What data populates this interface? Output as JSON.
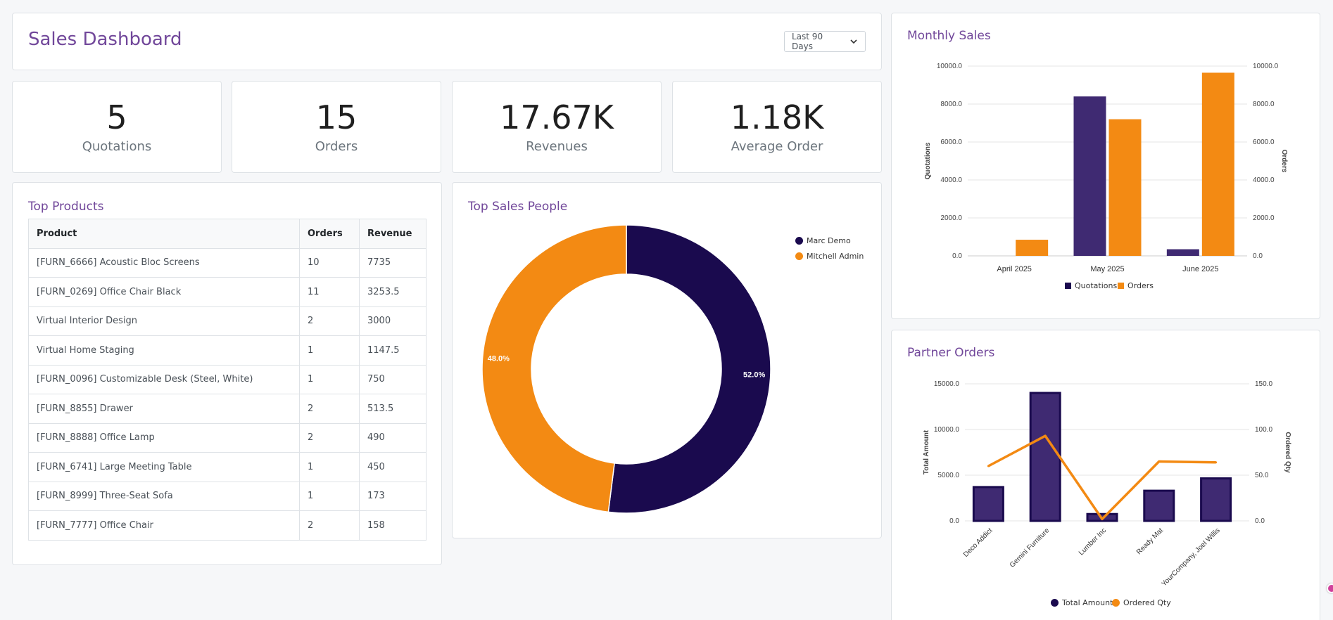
{
  "header": {
    "title": "Sales Dashboard",
    "period": "Last 90 Days"
  },
  "kpis": [
    {
      "value": "5",
      "label": "Quotations"
    },
    {
      "value": "15",
      "label": "Orders"
    },
    {
      "value": "17.67K",
      "label": "Revenues"
    },
    {
      "value": "1.18K",
      "label": "Average Order"
    }
  ],
  "top_products": {
    "title": "Top Products",
    "columns": [
      "Product",
      "Orders",
      "Revenue"
    ],
    "rows": [
      [
        "[FURN_6666] Acoustic Bloc Screens",
        "10",
        "7735"
      ],
      [
        "[FURN_0269] Office Chair Black",
        "11",
        "3253.5"
      ],
      [
        "Virtual Interior Design",
        "2",
        "3000"
      ],
      [
        "Virtual Home Staging",
        "1",
        "1147.5"
      ],
      [
        "[FURN_0096] Customizable Desk (Steel, White)",
        "1",
        "750"
      ],
      [
        "[FURN_8855] Drawer",
        "2",
        "513.5"
      ],
      [
        "[FURN_8888] Office Lamp",
        "2",
        "490"
      ],
      [
        "[FURN_6741] Large Meeting Table",
        "1",
        "450"
      ],
      [
        "[FURN_8999] Three-Seat Sofa",
        "1",
        "173"
      ],
      [
        "[FURN_7777] Office Chair",
        "2",
        "158"
      ]
    ]
  },
  "colors": {
    "accent": "#71479a",
    "navy": "#1a0a4e",
    "orange": "#f38a13",
    "bar_purple": "#3f2a72"
  },
  "chart_data": [
    {
      "type": "pie",
      "title": "Top Sales People",
      "labels": [
        "Marc Demo",
        "Mitchell Admin"
      ],
      "values": [
        52.0,
        48.0
      ],
      "data_labels": [
        "52.0%",
        "48.0%"
      ],
      "legend": "top-right"
    },
    {
      "type": "bar",
      "title": "Monthly Sales",
      "categories": [
        "April 2025",
        "May 2025",
        "June 2025"
      ],
      "series": [
        {
          "name": "Quotations",
          "axis": "left",
          "values": [
            0,
            8400,
            350
          ]
        },
        {
          "name": "Orders",
          "axis": "right",
          "values": [
            850,
            7200,
            9650
          ]
        }
      ],
      "ylabel": "Quotations",
      "y2label": "Orders",
      "ylim": [
        0,
        10000
      ],
      "y2lim": [
        0,
        10000
      ],
      "yticks": [
        "0.0",
        "2000.0",
        "4000.0",
        "6000.0",
        "8000.0",
        "10000.0"
      ],
      "legend": "bottom"
    },
    {
      "type": "bar",
      "title": "Partner Orders",
      "categories": [
        "Deco Addict",
        "Gemini Furniture",
        "Lumber Inc",
        "Ready Mat",
        "YourCompany, Joel Willis"
      ],
      "series": [
        {
          "name": "Total Amount",
          "type": "bar",
          "axis": "left",
          "values": [
            3700,
            14000,
            750,
            3300,
            4650
          ]
        },
        {
          "name": "Ordered Qty",
          "type": "line",
          "axis": "right",
          "values": [
            60,
            93,
            2,
            65,
            64
          ]
        }
      ],
      "ylabel": "Total Amount",
      "y2label": "Ordered Qty",
      "ylim": [
        0,
        15000
      ],
      "y2lim": [
        0,
        150
      ],
      "yticks": [
        "0.0",
        "5000.0",
        "10000.0",
        "15000.0"
      ],
      "y2ticks": [
        "0.0",
        "50.0",
        "100.0",
        "150.0"
      ],
      "legend": "bottom"
    }
  ]
}
